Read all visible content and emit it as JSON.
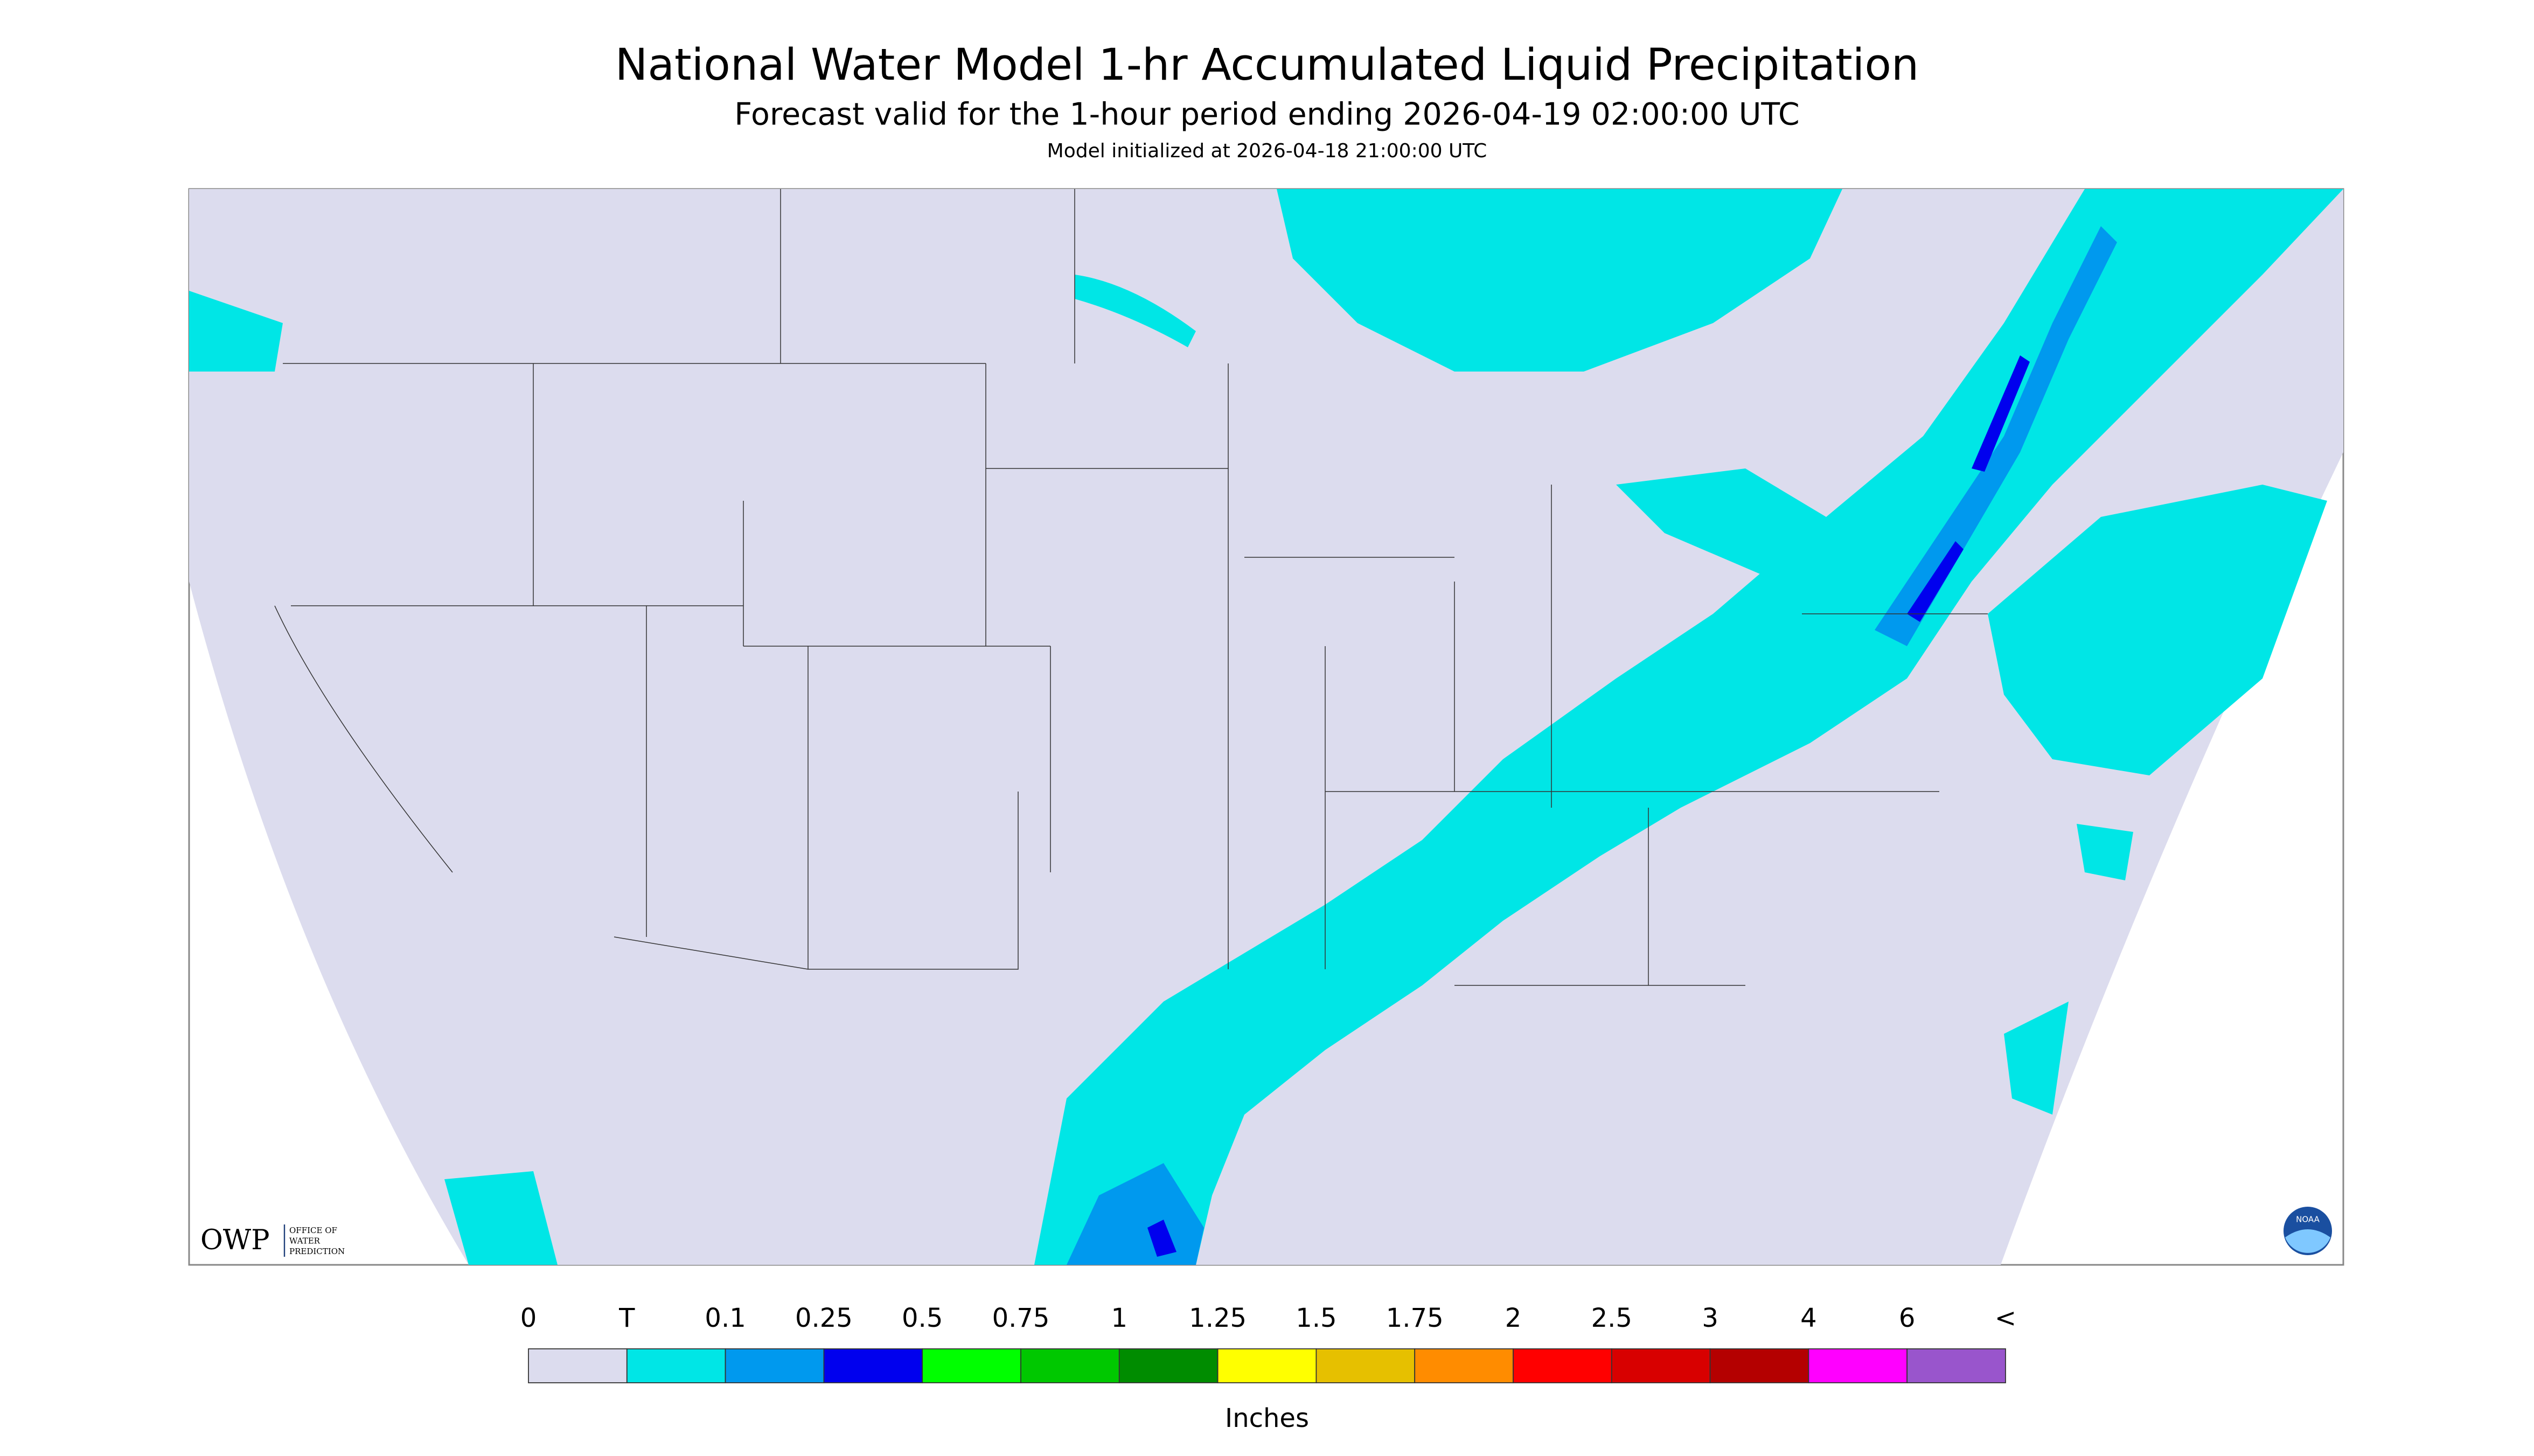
{
  "header": {
    "title": "National Water Model 1-hr Accumulated Liquid Precipitation",
    "subtitle": "Forecast valid for the 1-hour period ending 2026-04-19 02:00:00 UTC",
    "init": "Model initialized at 2026-04-18 21:00:00 UTC"
  },
  "logo": {
    "owp": "OWP",
    "office": [
      "OFFICE OF",
      "WATER",
      "PREDICTION"
    ],
    "noaa": "NOAA"
  },
  "legend": {
    "labels": [
      "0",
      "T",
      "0.1",
      "0.25",
      "0.5",
      "0.75",
      "1",
      "1.25",
      "1.5",
      "1.75",
      "2",
      "2.5",
      "3",
      "4",
      "6",
      "<"
    ],
    "colors": [
      "#dcdcee",
      "#00e6e6",
      "#0099ee",
      "#0000ee",
      "#00ff00",
      "#00c800",
      "#008c00",
      "#ffff00",
      "#e6c000",
      "#ff8c00",
      "#ff0000",
      "#d80000",
      "#b40000",
      "#ff00ff",
      "#9955cc"
    ],
    "unit": "Inches"
  }
}
